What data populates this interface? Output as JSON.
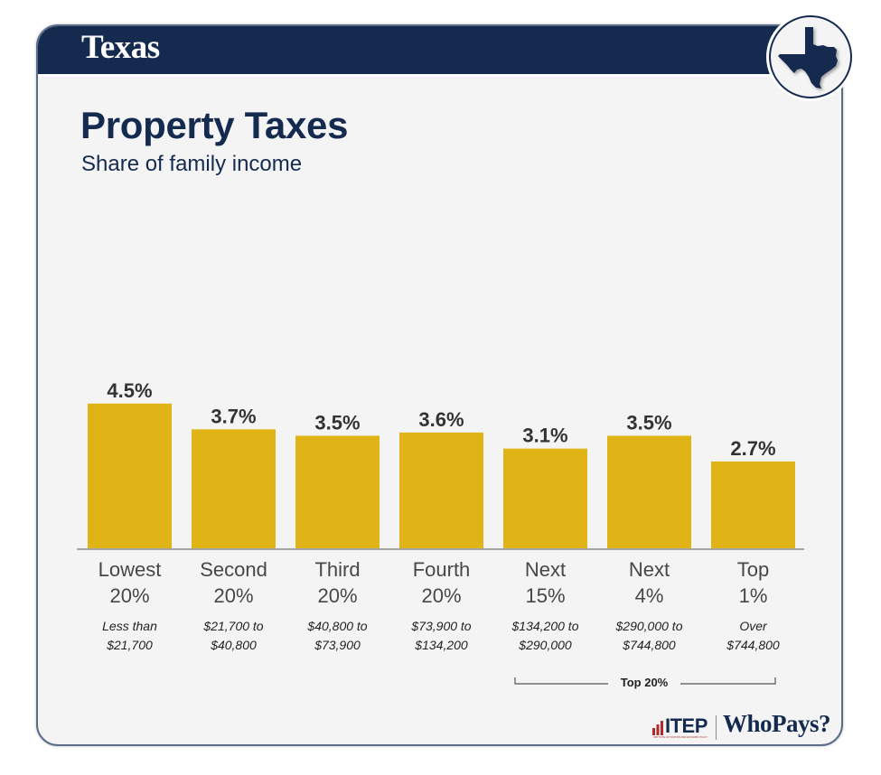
{
  "header": {
    "state": "Texas"
  },
  "badge": {
    "icon": "texas-map-icon"
  },
  "title": "Property Taxes",
  "subtitle": "Share of family income",
  "colors": {
    "navy": "#142b4f",
    "bar": "#e0b417",
    "label": "#333333",
    "accent_red": "#b02a2a"
  },
  "chart_data": {
    "type": "bar",
    "title": "Property Taxes",
    "subtitle": "Share of family income",
    "xlabel": "",
    "ylabel": "Share of family income",
    "ylim": [
      0,
      4.5
    ],
    "grid": false,
    "categories": [
      "Lowest 20%",
      "Second 20%",
      "Third 20%",
      "Fourth 20%",
      "Next 15%",
      "Next 4%",
      "Top 1%"
    ],
    "category_lines": [
      [
        "Lowest",
        "20%"
      ],
      [
        "Second",
        "20%"
      ],
      [
        "Third",
        "20%"
      ],
      [
        "Fourth",
        "20%"
      ],
      [
        "Next",
        "15%"
      ],
      [
        "Next",
        "4%"
      ],
      [
        "Top",
        "1%"
      ]
    ],
    "income_ranges": [
      [
        "Less than",
        "$21,700"
      ],
      [
        "$21,700 to",
        "$40,800"
      ],
      [
        "$40,800 to",
        "$73,900"
      ],
      [
        "$73,900 to",
        "$134,200"
      ],
      [
        "$134,200 to",
        "$290,000"
      ],
      [
        "$290,000 to",
        "$744,800"
      ],
      [
        "Over",
        "$744,800"
      ]
    ],
    "values": [
      4.5,
      3.7,
      3.5,
      3.6,
      3.1,
      3.5,
      2.7
    ],
    "data_labels": [
      "4.5%",
      "3.7%",
      "3.5%",
      "3.6%",
      "3.1%",
      "3.5%",
      "2.7%"
    ],
    "units": "%",
    "annotations": [
      {
        "text": "Top 20%",
        "spans": [
          "Next 15%",
          "Next 4%",
          "Top 1%"
        ]
      }
    ]
  },
  "footer": {
    "itep": "ITEP",
    "itep_sub": "INSTITUTE ON TAXATION AND ECONOMIC POLICY",
    "whopays": "WhoPays?"
  }
}
